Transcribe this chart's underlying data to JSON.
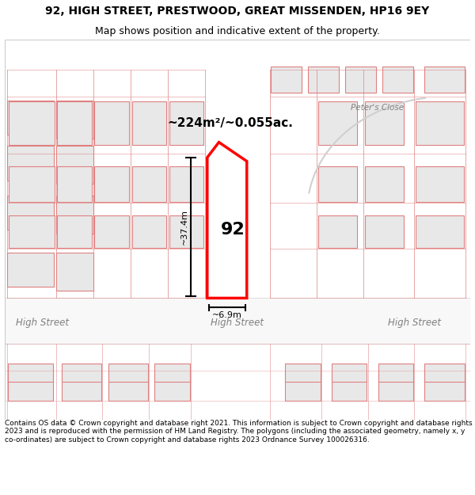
{
  "title_line1": "92, HIGH STREET, PRESTWOOD, GREAT MISSENDEN, HP16 9EY",
  "title_line2": "Map shows position and indicative extent of the property.",
  "footer_text": "Contains OS data © Crown copyright and database right 2021. This information is subject to Crown copyright and database rights 2023 and is reproduced with the permission of HM Land Registry. The polygons (including the associated geometry, namely x, y co-ordinates) are subject to Crown copyright and database rights 2023 Ordnance Survey 100026316.",
  "background_color": "#ffffff",
  "map_bg_color": "#f5f5f5",
  "building_fill": "#e8e8e8",
  "road_fill": "#ffffff",
  "outline_color": "#e08080",
  "highlight_color": "#ff0000",
  "highlight_fill": "none",
  "text_color": "#000000",
  "road_label_color": "#808080",
  "area_text": "~224m²/~0.055ac.",
  "width_text": "~6.9m",
  "height_text": "~37.4m",
  "label_92": "92",
  "road_label": "High Street",
  "peters_close_label": "Peter's Close"
}
